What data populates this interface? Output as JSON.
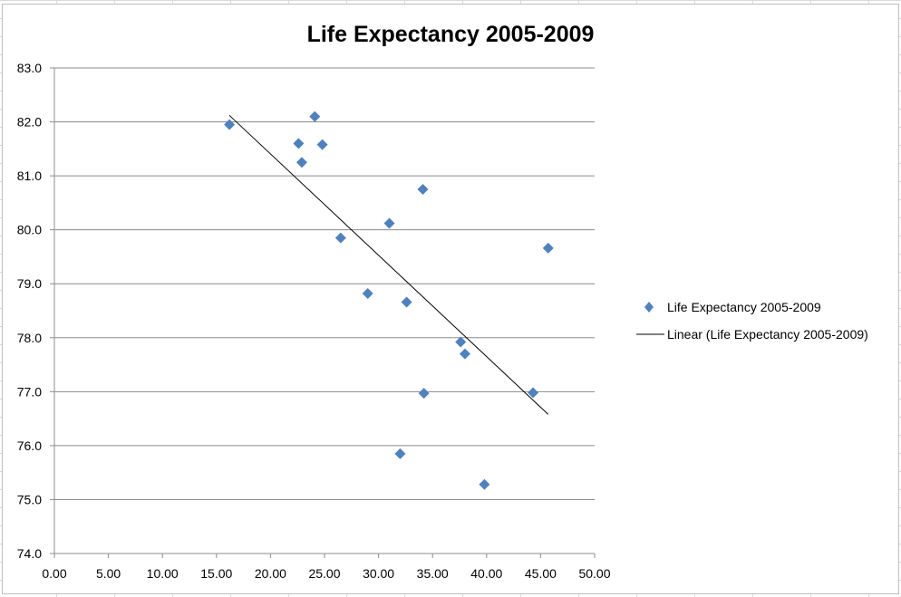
{
  "chart_data": {
    "type": "scatter",
    "title": "Life Expectancy 2005-2009",
    "xlabel": "",
    "ylabel": "",
    "xlim": [
      0,
      50
    ],
    "ylim": [
      74,
      83
    ],
    "x_ticks": [
      "0.00",
      "5.00",
      "10.00",
      "15.00",
      "20.00",
      "25.00",
      "30.00",
      "35.00",
      "40.00",
      "45.00",
      "50.00"
    ],
    "y_ticks": [
      "74.0",
      "75.0",
      "76.0",
      "77.0",
      "78.0",
      "79.0",
      "80.0",
      "81.0",
      "82.0",
      "83.0"
    ],
    "grid": "horizontal",
    "legend_position": "right",
    "series": [
      {
        "name": "Life Expectancy 2005-2009",
        "marker": "diamond",
        "color": "#4F81BD",
        "points": [
          {
            "x": 16.2,
            "y": 81.95
          },
          {
            "x": 22.6,
            "y": 81.6
          },
          {
            "x": 22.9,
            "y": 81.25
          },
          {
            "x": 24.1,
            "y": 82.1
          },
          {
            "x": 24.8,
            "y": 81.58
          },
          {
            "x": 26.5,
            "y": 79.85
          },
          {
            "x": 29.0,
            "y": 78.82
          },
          {
            "x": 31.0,
            "y": 80.12
          },
          {
            "x": 32.0,
            "y": 75.85
          },
          {
            "x": 32.6,
            "y": 78.66
          },
          {
            "x": 34.1,
            "y": 80.75
          },
          {
            "x": 34.2,
            "y": 76.97
          },
          {
            "x": 37.6,
            "y": 77.92
          },
          {
            "x": 38.0,
            "y": 77.7
          },
          {
            "x": 39.8,
            "y": 75.28
          },
          {
            "x": 44.3,
            "y": 76.98
          },
          {
            "x": 45.7,
            "y": 79.66
          }
        ]
      }
    ],
    "trendline": {
      "name": "Linear (Life Expectancy 2005-2009)",
      "type": "linear",
      "color": "#000000",
      "x_range": [
        16.2,
        45.7
      ],
      "y_range": [
        82.12,
        76.58
      ]
    }
  }
}
